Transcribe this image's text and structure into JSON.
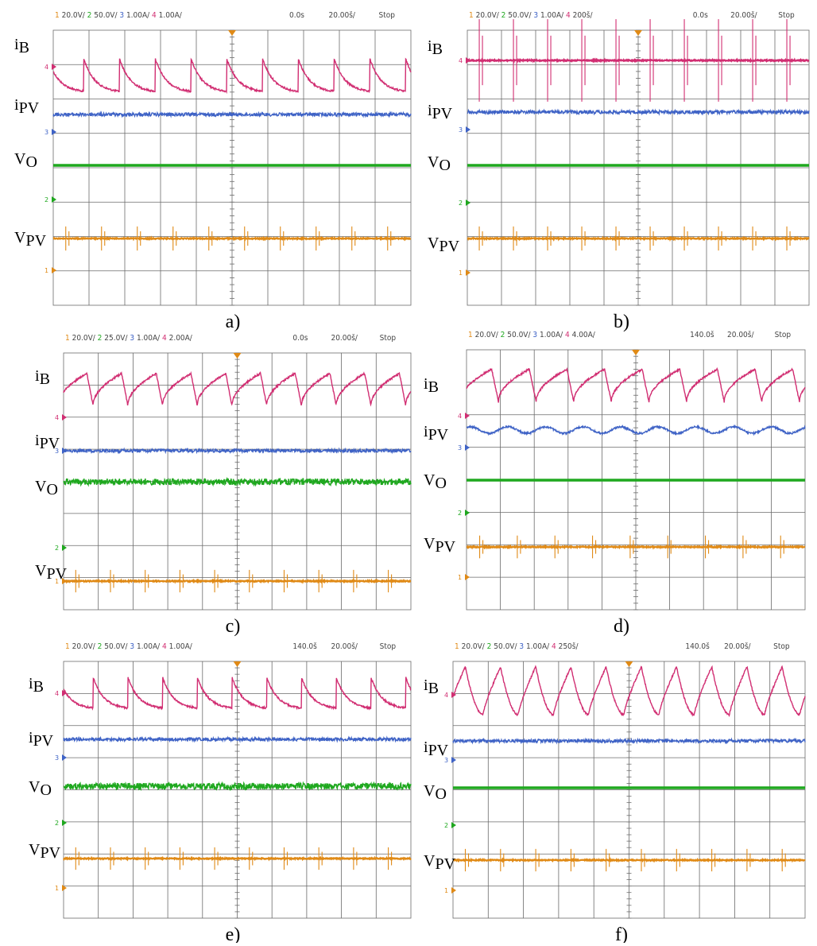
{
  "colors": {
    "ch1": "#e08a16",
    "ch2": "#1fa81f",
    "ch3": "#3f63c6",
    "ch4": "#d12e72",
    "grid": "#6b6b6b"
  },
  "chart_data": [
    {
      "type": "line",
      "caption": "a)",
      "header": {
        "ch1": "20.0V/",
        "ch2": "50.0V/",
        "ch3": "1.00A/",
        "ch4": "1.00A/",
        "time": "0.0s",
        "timebase": "20.00š/",
        "status": "Stop"
      },
      "series": [
        {
          "name": "iB",
          "shape": "sawtooth-decay",
          "ripple_div": 1.0,
          "periods": 10
        },
        {
          "name": "iPV",
          "shape": "noisy-flat",
          "ripple_div": 0.05
        },
        {
          "name": "VO",
          "shape": "flat",
          "ripple_div": 0
        },
        {
          "name": "VPV",
          "shape": "flat-with-spikes",
          "ripple_div": 0.1,
          "periods": 10
        }
      ]
    },
    {
      "type": "line",
      "caption": "b)",
      "header": {
        "ch1": "20.0V/",
        "ch2": "50.0V/",
        "ch3": "1.00A/",
        "ch4": "200š/",
        "time": "0.0s",
        "timebase": "20.00š/",
        "status": "Stop"
      },
      "series": [
        {
          "name": "iB",
          "shape": "flat-with-spikes",
          "ripple_div": 0.1,
          "periods": 10
        },
        {
          "name": "iPV",
          "shape": "noisy-flat",
          "ripple_div": 0.05
        },
        {
          "name": "VO",
          "shape": "flat",
          "ripple_div": 0
        },
        {
          "name": "VPV",
          "shape": "flat-with-spikes",
          "ripple_div": 0.1,
          "periods": 10
        }
      ]
    },
    {
      "type": "line",
      "caption": "c)",
      "header": {
        "ch1": "20.0V/",
        "ch2": "25.0V/",
        "ch3": "1.00A/",
        "ch4": "2.00A/",
        "time": "0.0s",
        "timebase": "20.00š/",
        "status": "Stop"
      },
      "series": [
        {
          "name": "iB",
          "shape": "sawtooth-rise",
          "ripple_div": 1.0,
          "periods": 10
        },
        {
          "name": "iPV",
          "shape": "noisy-flat",
          "ripple_div": 0.05
        },
        {
          "name": "VO",
          "shape": "noisy-flat",
          "ripple_div": 0.1
        },
        {
          "name": "VPV",
          "shape": "flat-with-spikes",
          "ripple_div": 0.1,
          "periods": 10
        }
      ]
    },
    {
      "type": "line",
      "caption": "d)",
      "header": {
        "ch1": "20.0V/",
        "ch2": "50.0V/",
        "ch3": "1.00A/",
        "ch4": "4.00A/",
        "time": "140.0š",
        "timebase": "20.00š/",
        "status": "Stop"
      },
      "series": [
        {
          "name": "iB",
          "shape": "sawtooth-rise",
          "ripple_div": 1.0,
          "periods": 9
        },
        {
          "name": "iPV",
          "shape": "wavy",
          "ripple_div": 0.2,
          "periods": 9
        },
        {
          "name": "VO",
          "shape": "flat",
          "ripple_div": 0
        },
        {
          "name": "VPV",
          "shape": "flat-with-spikes",
          "ripple_div": 0.1,
          "periods": 9
        }
      ]
    },
    {
      "type": "line",
      "caption": "e)",
      "header": {
        "ch1": "20.0V/",
        "ch2": "50.0V/",
        "ch3": "1.00A/",
        "ch4": "1.00A/",
        "time": "140.0š",
        "timebase": "20.00š/",
        "status": "Stop"
      },
      "series": [
        {
          "name": "iB",
          "shape": "sawtooth-decay",
          "ripple_div": 1.0,
          "periods": 10
        },
        {
          "name": "iPV",
          "shape": "noisy-flat",
          "ripple_div": 0.05
        },
        {
          "name": "VO",
          "shape": "noisy-flat",
          "ripple_div": 0.1
        },
        {
          "name": "VPV",
          "shape": "flat-with-spikes",
          "ripple_div": 0.1,
          "periods": 10
        }
      ]
    },
    {
      "type": "line",
      "caption": "f)",
      "header": {
        "ch1": "20.0V/",
        "ch2": "50.0V/",
        "ch3": "1.00A/",
        "ch4": "250š/",
        "time": "140.0š",
        "timebase": "20.00š/",
        "status": "Stop"
      },
      "series": [
        {
          "name": "iB",
          "shape": "peaked",
          "ripple_div": 1.5,
          "periods": 10
        },
        {
          "name": "iPV",
          "shape": "noisy-flat",
          "ripple_div": 0.05
        },
        {
          "name": "VO",
          "shape": "flat",
          "ripple_div": 0
        },
        {
          "name": "VPV",
          "shape": "flat-with-spikes",
          "ripple_div": 0.1,
          "periods": 10
        }
      ]
    }
  ]
}
